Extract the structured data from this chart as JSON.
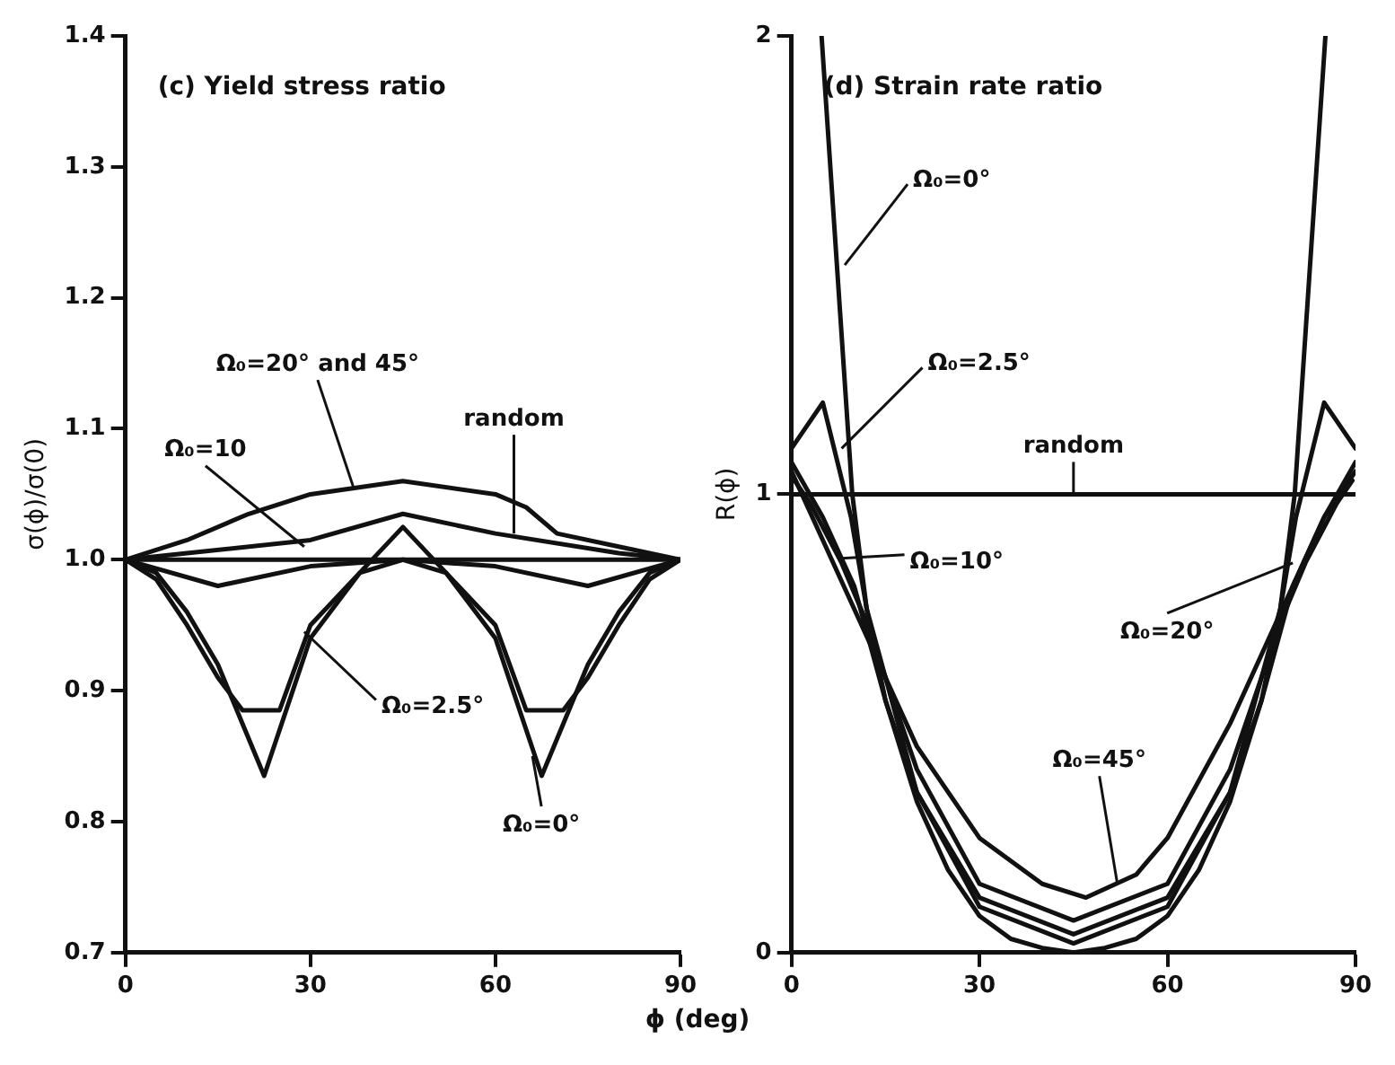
{
  "chart_data": [
    {
      "type": "line",
      "title": "(c) Yield stress ratio",
      "xlabel": "ϕ (deg)",
      "ylabel": "σ(ϕ)/σ(0)",
      "xlim": [
        0,
        90
      ],
      "xticks": [
        0,
        30,
        60,
        90
      ],
      "ylim": [
        0.7,
        1.4
      ],
      "yticks": [
        {
          "value": 0.7,
          "label": "0.7"
        },
        {
          "value": 0.8,
          "label": "0.8"
        },
        {
          "value": 0.9,
          "label": "0.9"
        },
        {
          "value": 1.0,
          "label": "1.0"
        },
        {
          "value": 1.1,
          "label": "1.1"
        },
        {
          "value": 1.2,
          "label": "1.2"
        },
        {
          "value": 1.3,
          "label": "1.3"
        },
        {
          "value": 1.4,
          "label": "1.4"
        }
      ],
      "series": [
        {
          "color": "#111111",
          "x": [
            0,
            90
          ],
          "values": [
            1.0,
            1.0
          ]
        },
        {
          "color": "#111111",
          "x": [
            0,
            10,
            20,
            30,
            45,
            60,
            65,
            70,
            80,
            90
          ],
          "values": [
            1.0,
            1.015,
            1.035,
            1.05,
            1.06,
            1.05,
            1.04,
            1.02,
            1.01,
            1.0
          ]
        },
        {
          "color": "#111111",
          "x": [
            0,
            10,
            30,
            45,
            60,
            80,
            90
          ],
          "values": [
            1.0,
            1.005,
            1.015,
            1.035,
            1.02,
            1.005,
            1.0
          ]
        },
        {
          "color": "#111111",
          "x": [
            0,
            15,
            30,
            45,
            60,
            75,
            90
          ],
          "values": [
            1.0,
            0.98,
            0.995,
            1.0,
            0.995,
            0.98,
            1.0
          ]
        },
        {
          "color": "#111111",
          "x": [
            0,
            5,
            10,
            15,
            19,
            25,
            30,
            38,
            45,
            52,
            60,
            65,
            71,
            75,
            80,
            85,
            90
          ],
          "values": [
            1.0,
            0.985,
            0.95,
            0.91,
            0.885,
            0.885,
            0.95,
            0.99,
            1.0,
            0.99,
            0.95,
            0.885,
            0.885,
            0.91,
            0.95,
            0.985,
            1.0
          ]
        },
        {
          "color": "#111111",
          "x": [
            0,
            5,
            10,
            15,
            22.5,
            30,
            38,
            45,
            52,
            60,
            67.5,
            75,
            80,
            85,
            90
          ],
          "values": [
            1.0,
            0.99,
            0.96,
            0.92,
            0.835,
            0.94,
            0.99,
            1.025,
            0.99,
            0.94,
            0.835,
            0.92,
            0.96,
            0.99,
            1.0
          ]
        }
      ],
      "annotations": [
        {
          "text": "Ω₀=20° and 45°",
          "x": 37,
          "y": 1.055
        },
        {
          "text": "random",
          "x": 63,
          "y": 1.02
        },
        {
          "text": "Ω₀=10",
          "x": 29,
          "y": 1.01
        },
        {
          "text": "Ω₀=2.5°",
          "x": 29,
          "y": 0.945
        },
        {
          "text": "Ω₀=0°",
          "x": 66,
          "y": 0.85
        }
      ]
    },
    {
      "type": "line",
      "title": "(d) Strain rate ratio",
      "ylabel": "R(ϕ)",
      "xlim": [
        0,
        90
      ],
      "xticks": [
        0,
        30,
        60,
        90
      ],
      "ylim": [
        0,
        2
      ],
      "yticks": [
        0,
        1,
        2
      ],
      "series": [
        {
          "color": "#111111",
          "x": [
            0,
            90
          ],
          "values": [
            1.0,
            1.0
          ]
        },
        {
          "color": "#111111",
          "x": [
            4.8,
            9.7,
            12,
            15,
            20,
            25,
            30,
            35,
            40,
            45,
            50,
            55,
            60,
            65,
            70,
            75,
            78,
            80.3,
            85.2
          ],
          "values": [
            2.0,
            1.0,
            0.75,
            0.55,
            0.33,
            0.18,
            0.08,
            0.03,
            0.01,
            0.0,
            0.01,
            0.03,
            0.08,
            0.18,
            0.33,
            0.55,
            0.75,
            1.0,
            2.0
          ]
        },
        {
          "color": "#111111",
          "x": [
            0,
            5,
            9.5,
            12,
            20,
            30,
            45,
            60,
            70,
            78,
            80.5,
            85,
            90
          ],
          "values": [
            1.1,
            1.2,
            0.95,
            0.75,
            0.35,
            0.1,
            0.02,
            0.1,
            0.35,
            0.75,
            0.95,
            1.2,
            1.1
          ]
        },
        {
          "color": "#111111",
          "x": [
            0,
            5,
            10,
            15,
            20,
            30,
            45,
            60,
            70,
            75,
            80,
            85,
            90
          ],
          "values": [
            1.07,
            0.95,
            0.8,
            0.55,
            0.35,
            0.12,
            0.04,
            0.12,
            0.35,
            0.55,
            0.8,
            0.95,
            1.07
          ]
        },
        {
          "color": "#111111",
          "x": [
            0.5,
            3,
            8,
            12,
            20,
            30,
            45,
            60,
            70,
            78,
            82,
            87,
            89.5
          ],
          "values": [
            1.03,
            0.98,
            0.85,
            0.72,
            0.4,
            0.15,
            0.07,
            0.15,
            0.4,
            0.72,
            0.85,
            0.98,
            1.03
          ]
        },
        {
          "color": "#111111",
          "x": [
            0,
            5,
            10,
            15,
            20,
            30,
            40,
            47,
            55,
            60,
            70,
            80,
            85,
            90
          ],
          "values": [
            1.05,
            0.9,
            0.75,
            0.6,
            0.45,
            0.25,
            0.15,
            0.12,
            0.17,
            0.25,
            0.5,
            0.8,
            0.95,
            1.05
          ]
        }
      ],
      "annotations": [
        {
          "text": "Ω₀=0°",
          "x": 8.5,
          "y": 1.5
        },
        {
          "text": "Ω₀=2.5°",
          "x": 8,
          "y": 1.1
        },
        {
          "text": "random",
          "x": 45,
          "y": 1.0
        },
        {
          "text": "Ω₀=10°",
          "x": 8,
          "y": 0.86
        },
        {
          "text": "Ω₀=20°",
          "x": 80,
          "y": 0.85
        },
        {
          "text": "Ω₀=45°",
          "x": 52,
          "y": 0.15
        }
      ]
    }
  ]
}
